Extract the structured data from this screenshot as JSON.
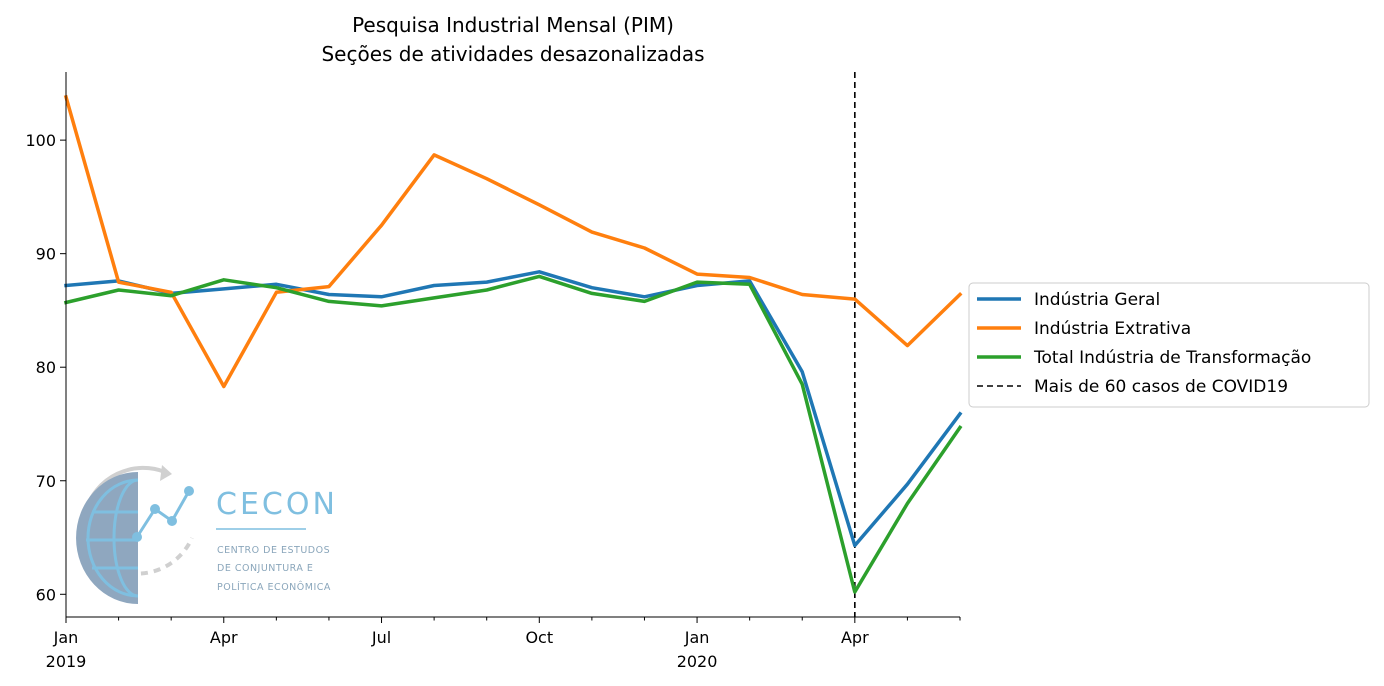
{
  "chart_data": {
    "type": "line",
    "title": "Pesquisa Industrial Mensal (PIM)",
    "subtitle": "Seções de atividades desazonalizadas",
    "xlabel": "",
    "ylabel": "",
    "x": [
      "2019-01",
      "2019-02",
      "2019-03",
      "2019-04",
      "2019-05",
      "2019-06",
      "2019-07",
      "2019-08",
      "2019-09",
      "2019-10",
      "2019-11",
      "2019-12",
      "2020-01",
      "2020-02",
      "2020-03",
      "2020-04",
      "2020-05",
      "2020-06"
    ],
    "x_ticks": [
      {
        "x": "2019-01",
        "label": "Jan",
        "sublabel": "2019"
      },
      {
        "x": "2019-04",
        "label": "Apr",
        "sublabel": ""
      },
      {
        "x": "2019-07",
        "label": "Jul",
        "sublabel": ""
      },
      {
        "x": "2019-10",
        "label": "Oct",
        "sublabel": ""
      },
      {
        "x": "2020-01",
        "label": "Jan",
        "sublabel": "2020"
      },
      {
        "x": "2020-04",
        "label": "Apr",
        "sublabel": ""
      }
    ],
    "xlim": [
      "2019-01",
      "2020-06"
    ],
    "ylim": [
      58,
      106
    ],
    "y_ticks": [
      "60",
      "70",
      "80",
      "90",
      "100"
    ],
    "series": [
      {
        "name": "Indústria Geral",
        "color": "#1f77b4",
        "values": [
          87.2,
          87.6,
          86.5,
          86.9,
          87.3,
          86.4,
          86.2,
          87.2,
          87.5,
          88.4,
          87.0,
          86.2,
          87.2,
          87.6,
          79.6,
          64.3,
          69.7,
          75.9
        ]
      },
      {
        "name": "Indústria Extrativa",
        "color": "#ff7f0e",
        "values": [
          103.8,
          87.5,
          86.6,
          78.3,
          86.6,
          87.1,
          92.5,
          98.7,
          96.6,
          94.3,
          91.9,
          90.5,
          88.2,
          87.9,
          86.4,
          86.0,
          81.9,
          86.4
        ]
      },
      {
        "name": "Total Indústria de Transformação",
        "color": "#2ca02c",
        "values": [
          85.7,
          86.8,
          86.3,
          87.7,
          87.0,
          85.8,
          85.4,
          86.1,
          86.8,
          88.0,
          86.5,
          85.8,
          87.5,
          87.3,
          78.5,
          60.2,
          68.0,
          74.7
        ]
      }
    ],
    "vline": {
      "x": "2020-04",
      "name": "Mais de 60 casos de COVID19",
      "color": "#000000",
      "style": "dashed"
    },
    "legend_position": "outside-right",
    "grid": false
  },
  "logo": {
    "word": "CECON",
    "lines": [
      "CENTRO DE ESTUDOS",
      "DE CONJUNTURA E",
      "POLÍTICA ECONÔMICA"
    ]
  }
}
